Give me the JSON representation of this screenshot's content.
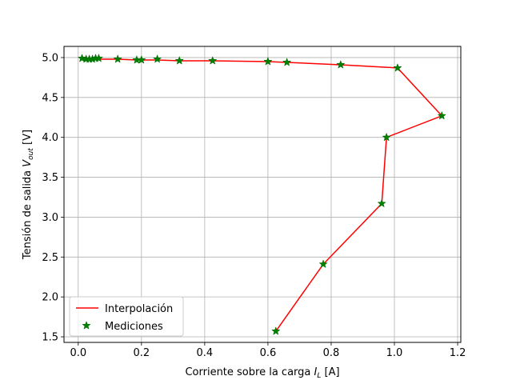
{
  "chart_data": {
    "type": "line",
    "title": "",
    "xlabel": "Corriente sobre la carga I_L [A]",
    "xlabel_main": "Corriente sobre la carga ",
    "xlabel_var": "I",
    "xlabel_sub": "L",
    "xlabel_tail": " [A]",
    "ylabel": "Tensión de salida V_out [V]",
    "ylabel_main": "Tensión de salida ",
    "ylabel_var": "V",
    "ylabel_sub": "out",
    "ylabel_tail": " [V]",
    "xlim": [
      -0.045,
      1.21
    ],
    "ylim": [
      1.43,
      5.14
    ],
    "xticks": [
      0.0,
      0.2,
      0.4,
      0.6,
      0.8,
      1.0,
      1.2
    ],
    "xtick_labels": [
      "0.0",
      "0.2",
      "0.4",
      "0.6",
      "0.8",
      "1.0",
      "1.2"
    ],
    "yticks": [
      1.5,
      2.0,
      2.5,
      3.0,
      3.5,
      4.0,
      4.5,
      5.0
    ],
    "ytick_labels": [
      "1.5",
      "2.0",
      "2.5",
      "3.0",
      "3.5",
      "4.0",
      "4.5",
      "5.0"
    ],
    "grid": true,
    "legend_position": "lower-left",
    "series": [
      {
        "name": "Interpolación",
        "kind": "line",
        "color": "#ff0000",
        "x": [
          0.012,
          0.025,
          0.035,
          0.045,
          0.055,
          0.065,
          0.125,
          0.185,
          0.2,
          0.25,
          0.32,
          0.425,
          0.6,
          0.66,
          0.83,
          1.01,
          1.15,
          0.975,
          0.96,
          0.775,
          0.625
        ],
        "y": [
          4.98,
          4.98,
          4.98,
          4.98,
          4.98,
          4.98,
          4.98,
          4.97,
          4.97,
          4.97,
          4.96,
          4.96,
          4.95,
          4.94,
          4.91,
          4.87,
          4.27,
          4.0,
          3.17,
          2.41,
          1.57
        ]
      },
      {
        "name": "Mediciones",
        "kind": "scatter",
        "marker": "star",
        "color": "#008000",
        "x": [
          0.012,
          0.025,
          0.035,
          0.045,
          0.055,
          0.065,
          0.125,
          0.185,
          0.2,
          0.25,
          0.32,
          0.425,
          0.6,
          0.66,
          0.83,
          1.01,
          1.15,
          0.975,
          0.96,
          0.775,
          0.625
        ],
        "y": [
          4.99,
          4.98,
          4.98,
          4.98,
          4.99,
          4.99,
          4.98,
          4.97,
          4.97,
          4.98,
          4.96,
          4.96,
          4.95,
          4.94,
          4.91,
          4.87,
          4.27,
          4.0,
          3.17,
          2.41,
          1.57
        ]
      }
    ]
  },
  "colors": {
    "grid": "#b0b0b0",
    "axes": "#000000",
    "legend_border": "#cccccc"
  }
}
